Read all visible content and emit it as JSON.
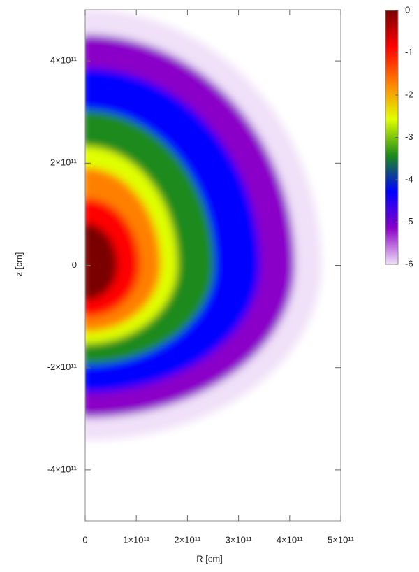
{
  "chart_data": {
    "type": "heatmap",
    "xlabel": "R [cm]",
    "ylabel": "z [cm]",
    "xlim": [
      0,
      500000000000
    ],
    "ylim": [
      -500000000000,
      500000000000
    ],
    "xticks": [
      0,
      {
        "value": 100000000000,
        "label": "1×10¹¹"
      },
      {
        "value": 200000000000,
        "label": "2×10¹¹"
      },
      {
        "value": 300000000000,
        "label": "3×10¹¹"
      },
      {
        "value": 400000000000,
        "label": "4×10¹¹"
      },
      {
        "value": 500000000000,
        "label": "5×10¹¹"
      }
    ],
    "yticks": [
      {
        "value": -400000000000,
        "label": "-4×10¹¹"
      },
      {
        "value": -200000000000,
        "label": "-2×10¹¹"
      },
      0,
      {
        "value": 200000000000,
        "label": "2×10¹¹"
      },
      {
        "value": 400000000000,
        "label": "4×10¹¹"
      }
    ],
    "colorbar": {
      "lim": [
        -6,
        0
      ],
      "ticks": [
        0,
        -1,
        -2,
        -3,
        -4,
        -5,
        -6
      ]
    },
    "colorscale": [
      "#7a0000",
      "#ff0000",
      "#ff8000",
      "#e0ff00",
      "#1a8a1a",
      "#0000ff",
      "#8a00c8",
      "#f0e0f8"
    ]
  }
}
